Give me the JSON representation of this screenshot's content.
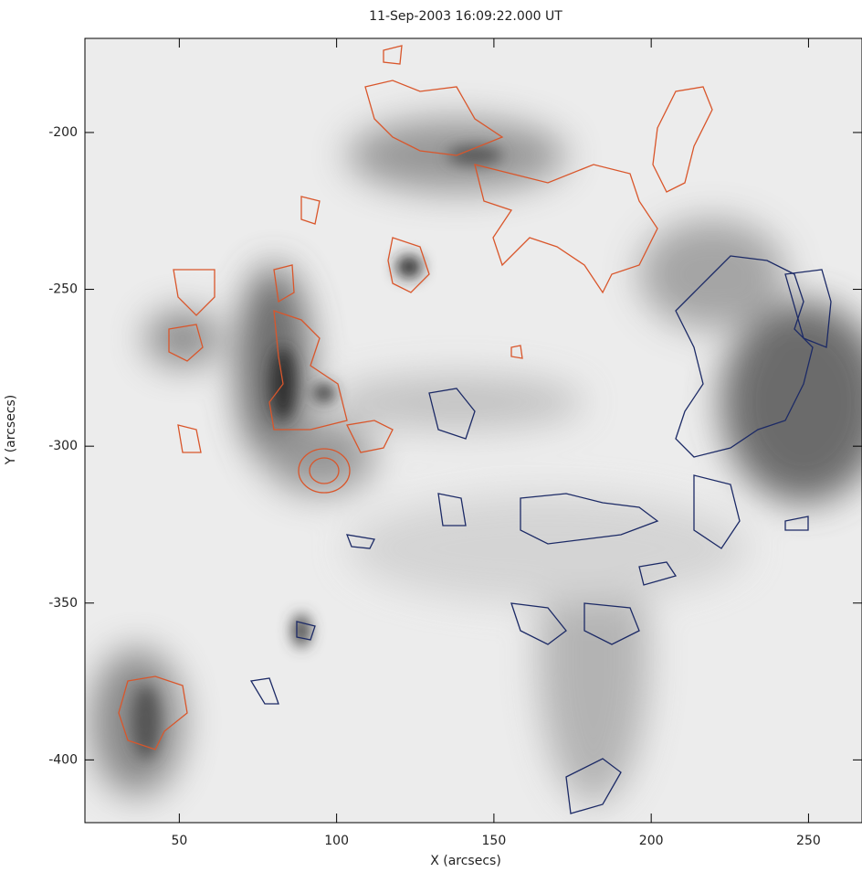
{
  "chart_data": {
    "type": "image",
    "title": "11-Sep-2003 16:09:22.000 UT",
    "xlabel": "X (arcsecs)",
    "ylabel": "Y (arcsecs)",
    "xlim": [
      20,
      267
    ],
    "ylim": [
      -420,
      -170
    ],
    "xticks": [
      50,
      100,
      150,
      200,
      250
    ],
    "yticks": [
      -200,
      -250,
      -300,
      -350,
      -400
    ]
  }
}
